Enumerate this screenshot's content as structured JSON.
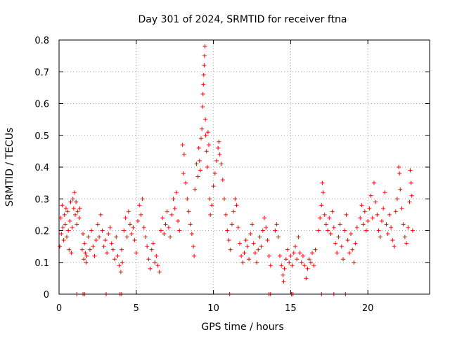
{
  "chart_data": {
    "type": "scatter",
    "title": "Day 301 of 2024, SRMTID for receiver ftna",
    "xlabel": "GPS time / hours",
    "ylabel": "SRMTID / TECUs",
    "xlim": [
      0,
      24
    ],
    "ylim": [
      0,
      0.8
    ],
    "xticks": [
      0,
      5,
      10,
      15,
      20
    ],
    "yticks": [
      0,
      0.1,
      0.2,
      0.3,
      0.4,
      0.5,
      0.6,
      0.7,
      0.8
    ],
    "xtick_labels": [
      "0",
      "5",
      "10",
      "15",
      "20"
    ],
    "ytick_labels": [
      "0",
      "0.1",
      "0.2",
      "0.3",
      "0.4",
      "0.5",
      "0.6",
      "0.7",
      "0.8"
    ],
    "grid": true,
    "marker": "plus",
    "color": "#ff0000",
    "series": [
      {
        "name": "SRMTID",
        "points": [
          [
            0.05,
            0.15
          ],
          [
            0.1,
            0.24
          ],
          [
            0.15,
            0.19
          ],
          [
            0.2,
            0.28
          ],
          [
            0.25,
            0.21
          ],
          [
            0.3,
            0.17
          ],
          [
            0.35,
            0.25
          ],
          [
            0.4,
            0.22
          ],
          [
            0.45,
            0.27
          ],
          [
            0.5,
            0.18
          ],
          [
            0.55,
            0.26
          ],
          [
            0.6,
            0.2
          ],
          [
            0.65,
            0.14
          ],
          [
            0.7,
            0.23
          ],
          [
            0.75,
            0.29
          ],
          [
            0.8,
            0.13
          ],
          [
            0.85,
            0.21
          ],
          [
            0.9,
            0.3
          ],
          [
            0.95,
            0.27
          ],
          [
            1.0,
            0.32
          ],
          [
            1.05,
            0.25
          ],
          [
            1.1,
            0.29
          ],
          [
            1.15,
            0.22
          ],
          [
            1.2,
            0.26
          ],
          [
            1.3,
            0.24
          ],
          [
            1.35,
            0.27
          ],
          [
            1.5,
            0.14
          ],
          [
            1.55,
            0.19
          ],
          [
            1.6,
            0.11
          ],
          [
            1.65,
            0.16
          ],
          [
            1.7,
            0.13
          ],
          [
            1.75,
            0.1
          ],
          [
            1.8,
            0.12
          ],
          [
            1.9,
            0.18
          ],
          [
            2.0,
            0.14
          ],
          [
            2.1,
            0.2
          ],
          [
            2.2,
            0.15
          ],
          [
            2.3,
            0.12
          ],
          [
            2.4,
            0.17
          ],
          [
            2.5,
            0.22
          ],
          [
            2.6,
            0.18
          ],
          [
            2.7,
            0.25
          ],
          [
            2.8,
            0.2
          ],
          [
            2.9,
            0.15
          ],
          [
            3.0,
            0.17
          ],
          [
            3.1,
            0.13
          ],
          [
            3.2,
            0.19
          ],
          [
            3.3,
            0.21
          ],
          [
            3.4,
            0.16
          ],
          [
            3.5,
            0.14
          ],
          [
            3.6,
            0.11
          ],
          [
            3.7,
            0.18
          ],
          [
            3.8,
            0.12
          ],
          [
            3.9,
            0.09
          ],
          [
            4.0,
            0.07
          ],
          [
            4.05,
            0.14
          ],
          [
            4.1,
            0.1
          ],
          [
            4.2,
            0.2
          ],
          [
            4.3,
            0.24
          ],
          [
            4.4,
            0.18
          ],
          [
            4.5,
            0.26
          ],
          [
            4.6,
            0.22
          ],
          [
            4.7,
            0.19
          ],
          [
            4.8,
            0.21
          ],
          [
            4.9,
            0.17
          ],
          [
            5.0,
            0.13
          ],
          [
            5.1,
            0.23
          ],
          [
            5.2,
            0.28
          ],
          [
            5.3,
            0.25
          ],
          [
            5.4,
            0.3
          ],
          [
            5.5,
            0.21
          ],
          [
            5.6,
            0.18
          ],
          [
            5.7,
            0.15
          ],
          [
            5.8,
            0.11
          ],
          [
            5.9,
            0.08
          ],
          [
            6.0,
            0.14
          ],
          [
            6.1,
            0.16
          ],
          [
            6.2,
            0.1
          ],
          [
            6.3,
            0.12
          ],
          [
            6.4,
            0.09
          ],
          [
            6.5,
            0.07
          ],
          [
            6.6,
            0.2
          ],
          [
            6.7,
            0.24
          ],
          [
            6.8,
            0.19
          ],
          [
            6.9,
            0.22
          ],
          [
            7.0,
            0.26
          ],
          [
            7.1,
            0.21
          ],
          [
            7.2,
            0.18
          ],
          [
            7.3,
            0.25
          ],
          [
            7.4,
            0.3
          ],
          [
            7.5,
            0.27
          ],
          [
            7.6,
            0.32
          ],
          [
            7.7,
            0.23
          ],
          [
            7.8,
            0.2
          ],
          [
            8.0,
            0.47
          ],
          [
            8.05,
            0.38
          ],
          [
            8.1,
            0.44
          ],
          [
            8.2,
            0.35
          ],
          [
            8.3,
            0.3
          ],
          [
            8.4,
            0.26
          ],
          [
            8.5,
            0.22
          ],
          [
            8.6,
            0.19
          ],
          [
            8.7,
            0.15
          ],
          [
            8.75,
            0.12
          ],
          [
            8.8,
            0.33
          ],
          [
            8.9,
            0.41
          ],
          [
            9.0,
            0.37
          ],
          [
            9.05,
            0.46
          ],
          [
            9.1,
            0.42
          ],
          [
            9.15,
            0.39
          ],
          [
            9.2,
            0.49
          ],
          [
            9.25,
            0.52
          ],
          [
            9.3,
            0.59
          ],
          [
            9.32,
            0.63
          ],
          [
            9.35,
            0.66
          ],
          [
            9.37,
            0.69
          ],
          [
            9.4,
            0.72
          ],
          [
            9.42,
            0.75
          ],
          [
            9.45,
            0.78
          ],
          [
            9.48,
            0.55
          ],
          [
            9.5,
            0.5
          ],
          [
            9.55,
            0.45
          ],
          [
            9.6,
            0.4
          ],
          [
            9.65,
            0.51
          ],
          [
            9.7,
            0.47
          ],
          [
            9.75,
            0.3
          ],
          [
            9.8,
            0.25
          ],
          [
            9.9,
            0.28
          ],
          [
            10.0,
            0.34
          ],
          [
            10.1,
            0.38
          ],
          [
            10.2,
            0.42
          ],
          [
            10.3,
            0.46
          ],
          [
            10.35,
            0.48
          ],
          [
            10.4,
            0.44
          ],
          [
            10.5,
            0.41
          ],
          [
            10.6,
            0.36
          ],
          [
            10.7,
            0.3
          ],
          [
            10.8,
            0.25
          ],
          [
            10.9,
            0.2
          ],
          [
            11.0,
            0.17
          ],
          [
            11.1,
            0.14
          ],
          [
            11.2,
            0.22
          ],
          [
            11.3,
            0.26
          ],
          [
            11.4,
            0.3
          ],
          [
            11.5,
            0.28
          ],
          [
            11.6,
            0.21
          ],
          [
            11.7,
            0.16
          ],
          [
            11.8,
            0.12
          ],
          [
            11.9,
            0.1
          ],
          [
            12.0,
            0.13
          ],
          [
            12.1,
            0.17
          ],
          [
            12.2,
            0.15
          ],
          [
            12.3,
            0.11
          ],
          [
            12.4,
            0.19
          ],
          [
            12.5,
            0.22
          ],
          [
            12.6,
            0.16
          ],
          [
            12.7,
            0.13
          ],
          [
            12.8,
            0.1
          ],
          [
            12.9,
            0.14
          ],
          [
            13.0,
            0.18
          ],
          [
            13.1,
            0.15
          ],
          [
            13.2,
            0.2
          ],
          [
            13.3,
            0.24
          ],
          [
            13.4,
            0.21
          ],
          [
            13.5,
            0.17
          ],
          [
            13.6,
            0.12
          ],
          [
            13.7,
            0.09
          ],
          [
            14.0,
            0.2
          ],
          [
            14.1,
            0.22
          ],
          [
            14.2,
            0.18
          ],
          [
            14.3,
            0.12
          ],
          [
            14.4,
            0.09
          ],
          [
            14.5,
            0.06
          ],
          [
            14.55,
            0.04
          ],
          [
            14.6,
            0.08
          ],
          [
            14.7,
            0.11
          ],
          [
            14.8,
            0.14
          ],
          [
            14.9,
            0.1
          ],
          [
            15.0,
            0.12
          ],
          [
            15.1,
            0.09
          ],
          [
            15.2,
            0.13
          ],
          [
            15.3,
            0.15
          ],
          [
            15.4,
            0.11
          ],
          [
            15.5,
            0.18
          ],
          [
            15.6,
            0.13
          ],
          [
            15.7,
            0.1
          ],
          [
            15.8,
            0.12
          ],
          [
            15.9,
            0.09
          ],
          [
            16.0,
            0.05
          ],
          [
            16.1,
            0.08
          ],
          [
            16.2,
            0.11
          ],
          [
            16.3,
            0.1
          ],
          [
            16.4,
            0.13
          ],
          [
            16.5,
            0.09
          ],
          [
            16.6,
            0.14
          ],
          [
            16.8,
            0.2
          ],
          [
            16.9,
            0.24
          ],
          [
            17.0,
            0.28
          ],
          [
            17.05,
            0.35
          ],
          [
            17.1,
            0.32
          ],
          [
            17.2,
            0.25
          ],
          [
            17.3,
            0.22
          ],
          [
            17.4,
            0.2
          ],
          [
            17.5,
            0.24
          ],
          [
            17.6,
            0.19
          ],
          [
            17.7,
            0.26
          ],
          [
            17.8,
            0.21
          ],
          [
            17.9,
            0.16
          ],
          [
            18.0,
            0.13
          ],
          [
            18.1,
            0.18
          ],
          [
            18.2,
            0.22
          ],
          [
            18.3,
            0.15
          ],
          [
            18.4,
            0.11
          ],
          [
            18.5,
            0.2
          ],
          [
            18.6,
            0.25
          ],
          [
            18.7,
            0.17
          ],
          [
            18.8,
            0.13
          ],
          [
            18.9,
            0.19
          ],
          [
            19.0,
            0.14
          ],
          [
            19.1,
            0.1
          ],
          [
            19.2,
            0.16
          ],
          [
            19.3,
            0.21
          ],
          [
            19.5,
            0.24
          ],
          [
            19.6,
            0.28
          ],
          [
            19.7,
            0.22
          ],
          [
            19.8,
            0.26
          ],
          [
            19.9,
            0.2
          ],
          [
            20.0,
            0.23
          ],
          [
            20.1,
            0.27
          ],
          [
            20.2,
            0.31
          ],
          [
            20.3,
            0.24
          ],
          [
            20.4,
            0.35
          ],
          [
            20.5,
            0.29
          ],
          [
            20.6,
            0.25
          ],
          [
            20.7,
            0.2
          ],
          [
            20.8,
            0.18
          ],
          [
            20.9,
            0.23
          ],
          [
            21.0,
            0.27
          ],
          [
            21.1,
            0.32
          ],
          [
            21.2,
            0.22
          ],
          [
            21.3,
            0.19
          ],
          [
            21.4,
            0.25
          ],
          [
            21.5,
            0.21
          ],
          [
            21.6,
            0.17
          ],
          [
            21.7,
            0.15
          ],
          [
            21.8,
            0.26
          ],
          [
            21.9,
            0.3
          ],
          [
            22.0,
            0.4
          ],
          [
            22.05,
            0.38
          ],
          [
            22.1,
            0.33
          ],
          [
            22.2,
            0.27
          ],
          [
            22.3,
            0.22
          ],
          [
            22.4,
            0.18
          ],
          [
            22.5,
            0.16
          ],
          [
            22.6,
            0.21
          ],
          [
            22.7,
            0.29
          ],
          [
            22.75,
            0.39
          ],
          [
            22.8,
            0.35
          ],
          [
            22.85,
            0.31
          ],
          [
            22.9,
            0.2
          ],
          [
            1.15,
            0.0
          ],
          [
            1.55,
            0.0
          ],
          [
            1.65,
            0.0
          ],
          [
            3.05,
            0.0
          ],
          [
            3.95,
            0.0
          ],
          [
            4.05,
            0.0
          ],
          [
            11.05,
            0.0
          ],
          [
            13.6,
            0.0
          ],
          [
            13.7,
            0.0
          ],
          [
            15.05,
            0.0
          ],
          [
            15.15,
            0.0
          ],
          [
            17.0,
            0.0
          ],
          [
            17.8,
            0.0
          ],
          [
            18.55,
            0.0
          ]
        ]
      }
    ]
  }
}
